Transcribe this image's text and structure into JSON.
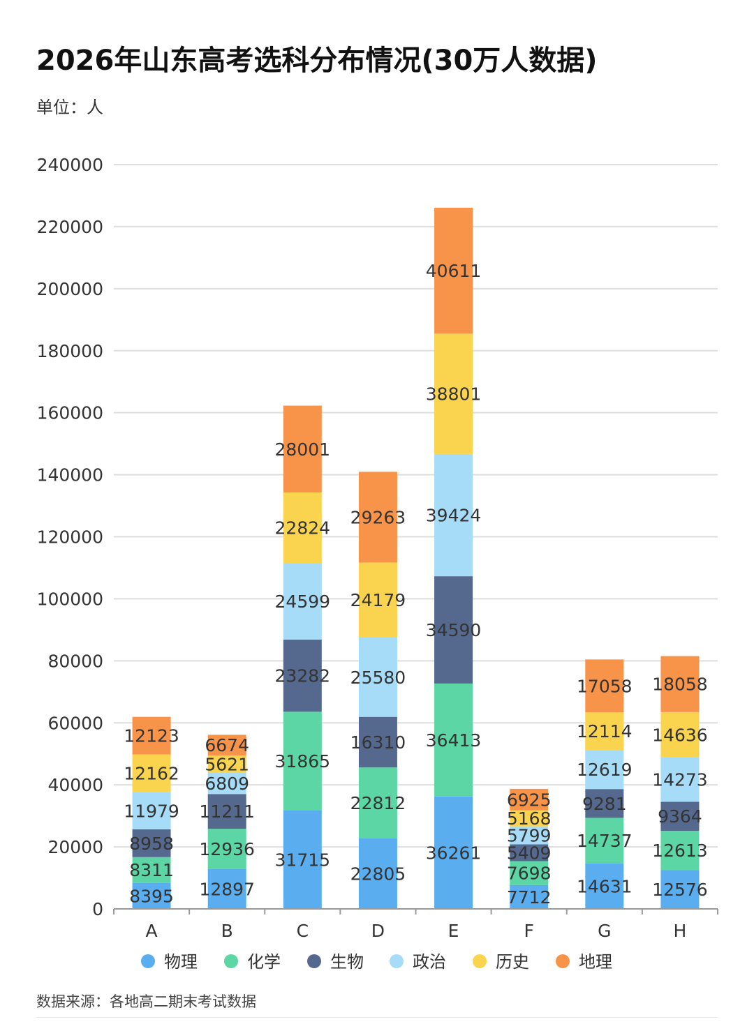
{
  "colors": {
    "物理": "#5aaef0",
    "化学": "#5cd6a4",
    "生物": "#55698f",
    "政治": "#a6dcf7",
    "历史": "#fad44e",
    "地理": "#f8944a",
    "grid": "#dddddd",
    "axis": "#9a9a9a"
  },
  "chart_data": {
    "type": "bar",
    "stacked": true,
    "title": "2026年山东高考选科分布情况(30万人数据)",
    "unit_label": "单位：人",
    "source": "数据来源：各地高二期末考试数据",
    "xlabel": "",
    "ylabel": "",
    "ylim": [
      0,
      240000
    ],
    "y_ticks": [
      0,
      20000,
      40000,
      60000,
      80000,
      100000,
      120000,
      140000,
      160000,
      180000,
      200000,
      220000,
      240000
    ],
    "grid": true,
    "legend_position": "bottom",
    "categories": [
      "A",
      "B",
      "C",
      "D",
      "E",
      "F",
      "G",
      "H"
    ],
    "series": [
      {
        "name": "物理",
        "values": [
          8395,
          12897,
          31715,
          22805,
          36261,
          7712,
          14631,
          12576
        ]
      },
      {
        "name": "化学",
        "values": [
          8311,
          12936,
          31865,
          22812,
          36413,
          7698,
          14737,
          12613
        ]
      },
      {
        "name": "生物",
        "values": [
          8958,
          11211,
          23282,
          16310,
          34590,
          5409,
          9281,
          9364
        ]
      },
      {
        "name": "政治",
        "values": [
          11979,
          6809,
          24599,
          25580,
          39424,
          5799,
          12619,
          14273
        ]
      },
      {
        "name": "历史",
        "values": [
          12162,
          5621,
          22824,
          24179,
          38801,
          5168,
          12114,
          14636
        ]
      },
      {
        "name": "地理",
        "values": [
          12123,
          6674,
          28001,
          29263,
          40611,
          6925,
          17058,
          18058
        ]
      }
    ]
  }
}
